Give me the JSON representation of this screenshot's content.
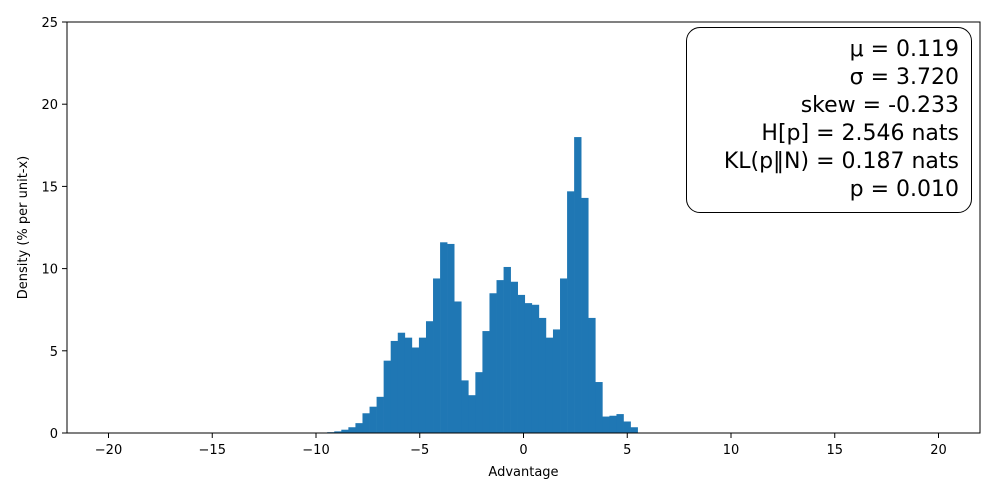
{
  "chart_data": {
    "type": "bar",
    "title": "",
    "xlabel": "Advantage",
    "ylabel": "Density (% per unit-x)",
    "xlim": [
      -22,
      22
    ],
    "ylim": [
      0,
      25
    ],
    "xticks": [
      -20,
      -15,
      -10,
      -5,
      0,
      5,
      10,
      15,
      20
    ],
    "xtick_labels": [
      "−20",
      "−15",
      "−10",
      "−5",
      "0",
      "5",
      "10",
      "15",
      "20"
    ],
    "yticks": [
      0,
      5,
      10,
      15,
      20,
      25
    ],
    "ytick_labels": [
      "0",
      "5",
      "10",
      "15",
      "20",
      "25"
    ],
    "bin_width": 0.34,
    "bins": [
      {
        "x0": -9.8,
        "height": 0.03
      },
      {
        "x0": -9.46,
        "height": 0.05
      },
      {
        "x0": -9.12,
        "height": 0.1
      },
      {
        "x0": -8.78,
        "height": 0.2
      },
      {
        "x0": -8.44,
        "height": 0.35
      },
      {
        "x0": -8.1,
        "height": 0.6
      },
      {
        "x0": -7.76,
        "height": 1.2
      },
      {
        "x0": -7.42,
        "height": 1.6
      },
      {
        "x0": -7.08,
        "height": 2.2
      },
      {
        "x0": -6.74,
        "height": 4.4
      },
      {
        "x0": -6.4,
        "height": 5.6
      },
      {
        "x0": -6.06,
        "height": 6.1
      },
      {
        "x0": -5.72,
        "height": 5.8
      },
      {
        "x0": -5.38,
        "height": 5.2
      },
      {
        "x0": -5.04,
        "height": 5.8
      },
      {
        "x0": -4.7,
        "height": 6.8
      },
      {
        "x0": -4.36,
        "height": 9.4
      },
      {
        "x0": -4.02,
        "height": 11.6
      },
      {
        "x0": -3.68,
        "height": 11.5
      },
      {
        "x0": -3.34,
        "height": 8.0
      },
      {
        "x0": -3.0,
        "height": 3.2
      },
      {
        "x0": -2.66,
        "height": 2.3
      },
      {
        "x0": -2.32,
        "height": 3.7
      },
      {
        "x0": -1.98,
        "height": 6.2
      },
      {
        "x0": -1.64,
        "height": 8.5
      },
      {
        "x0": -1.3,
        "height": 9.3
      },
      {
        "x0": -0.96,
        "height": 10.1
      },
      {
        "x0": -0.62,
        "height": 9.2
      },
      {
        "x0": -0.28,
        "height": 8.4
      },
      {
        "x0": 0.06,
        "height": 7.9
      },
      {
        "x0": 0.4,
        "height": 7.8
      },
      {
        "x0": 0.74,
        "height": 7.0
      },
      {
        "x0": 1.08,
        "height": 5.8
      },
      {
        "x0": 1.42,
        "height": 6.3
      },
      {
        "x0": 1.76,
        "height": 9.4
      },
      {
        "x0": 2.1,
        "height": 14.7
      },
      {
        "x0": 2.44,
        "height": 18.0
      },
      {
        "x0": 2.78,
        "height": 14.3
      },
      {
        "x0": 3.12,
        "height": 7.0
      },
      {
        "x0": 3.46,
        "height": 3.1
      },
      {
        "x0": 3.8,
        "height": 1.0
      },
      {
        "x0": 4.14,
        "height": 1.05
      },
      {
        "x0": 4.48,
        "height": 1.15
      },
      {
        "x0": 4.82,
        "height": 0.7
      },
      {
        "x0": 5.16,
        "height": 0.35
      }
    ],
    "grid": false,
    "bar_color": "#1f77b4",
    "stats_box": {
      "position": "top-right",
      "lines": [
        "μ = 0.119",
        "σ = 3.720",
        "skew = -0.233",
        "H[p] = 2.546 nats",
        "KL(p‖N) = 0.187 nats",
        "p = 0.010"
      ]
    }
  }
}
